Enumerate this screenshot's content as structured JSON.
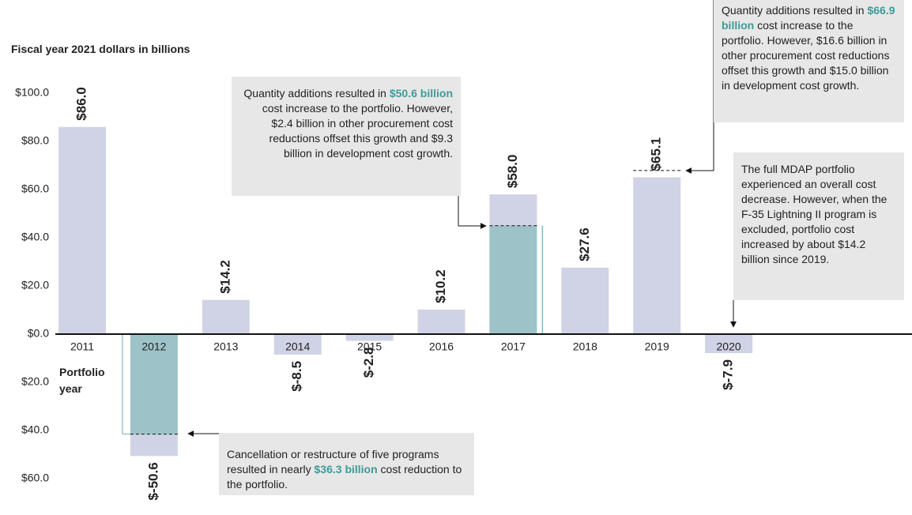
{
  "chart_data": {
    "type": "bar",
    "y_axis_label": "Fiscal year 2021 dollars in billions",
    "x_axis_label": "Portfolio year",
    "categories": [
      "2011",
      "2012",
      "2013",
      "2014",
      "2015",
      "2016",
      "2017",
      "2018",
      "2019",
      "2020"
    ],
    "values": [
      86.0,
      -50.6,
      14.2,
      -8.5,
      -2.8,
      10.2,
      58.0,
      27.6,
      65.1,
      -7.9
    ],
    "value_labels": [
      "$86.0",
      "$-50.6",
      "$14.2",
      "$-8.5",
      "$-2.8",
      "$10.2",
      "$58.0",
      "$27.6",
      "$65.1",
      "$-7.9"
    ],
    "color": "#d0d3e5",
    "highlight_color": "#9dc3c8",
    "highlights": [
      {
        "category": "2012",
        "value": -41.5
      },
      {
        "category": "2017",
        "value": 45.0
      }
    ],
    "markers": [
      {
        "category": "2019",
        "value": 67.9
      }
    ],
    "ylim": [
      -75,
      110
    ],
    "yticks": [
      {
        "value": 100,
        "label": "$100.0"
      },
      {
        "value": 80,
        "label": "$80.0"
      },
      {
        "value": 60,
        "label": "$60.0"
      },
      {
        "value": 40,
        "label": "$40.0"
      },
      {
        "value": 20,
        "label": "$20.0"
      },
      {
        "value": 0,
        "label": "$0.0"
      },
      {
        "value": -20,
        "label": "$20.0"
      },
      {
        "value": -40,
        "label": "$40.0"
      },
      {
        "value": -60,
        "label": "$60.0"
      }
    ],
    "annotations": [
      {
        "parts": [
          {
            "text": "Quantity additions resulted in "
          },
          {
            "text": "$50.6 billion",
            "bold": true
          },
          {
            "text": " cost increase to the portfolio. However, $2.4 billion in other procurement cost reductions offset this growth and $9.3 billion in development cost growth."
          }
        ]
      },
      {
        "parts": [
          {
            "text": "Quantity additions resulted in "
          },
          {
            "text": "$66.9 billion",
            "bold": true
          },
          {
            "text": " cost increase to the portfolio. However, $16.6 billion in other procurement cost reductions offset this growth and $15.0 billion in development cost growth."
          }
        ]
      },
      {
        "parts": [
          {
            "text": "The full MDAP portfolio experienced an overall cost decrease. However, when the F-35 Lightning II program is excluded, portfolio cost increased by about $14.2 billion since 2019."
          }
        ]
      },
      {
        "parts": [
          {
            "text": "Cancellation or restructure of five programs resulted in nearly "
          },
          {
            "text": "$36.3 billion",
            "bold": true
          },
          {
            "text": " cost reduction to the portfolio."
          }
        ]
      }
    ]
  }
}
